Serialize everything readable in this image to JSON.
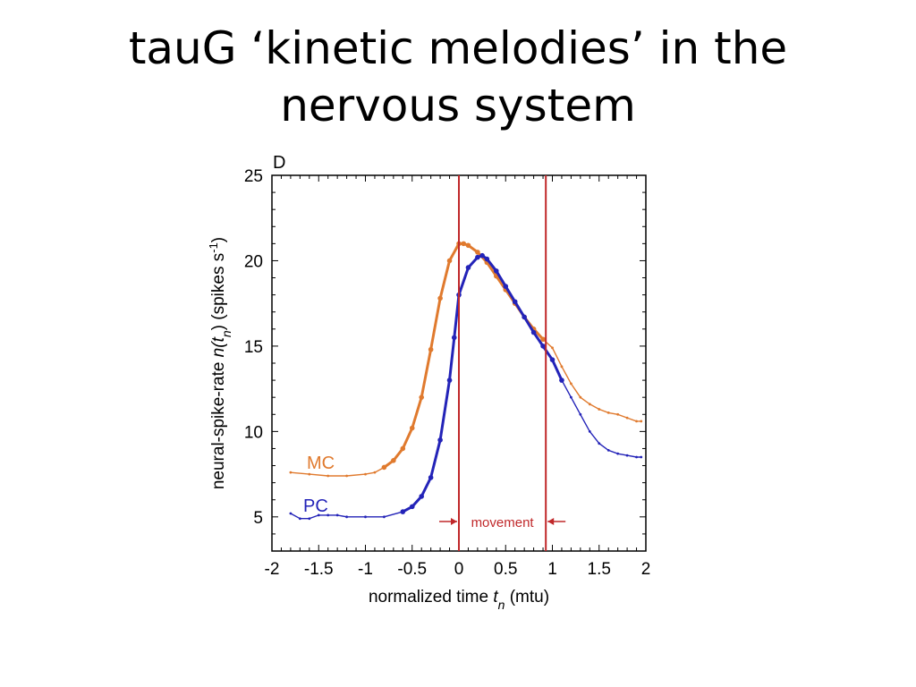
{
  "slide": {
    "title_line1": "tauG ‘kinetic melodies’ in the",
    "title_line2": "nervous system"
  },
  "chart_data": {
    "type": "line",
    "panel_label": "D",
    "xlabel": {
      "pre": "normalized time ",
      "var": "t",
      "sub": "n",
      "post": " (mtu)"
    },
    "ylabel": {
      "pre": "neural-spike-rate ",
      "var": "n(t",
      "sub": "n",
      "mid": ") (spikes s",
      "sup": "-1",
      "post": ")"
    },
    "xlim": [
      -2,
      2
    ],
    "ylim": [
      3,
      25
    ],
    "xticks": [
      "-2",
      "-1.5",
      "-1",
      "-0.5",
      "0",
      "0.5",
      "1",
      "1.5",
      "2"
    ],
    "yticks": [
      "5",
      "10",
      "15",
      "20",
      "25"
    ],
    "grid": false,
    "series": [
      {
        "name": "MC",
        "color": "#e07a2e",
        "label_color": "#e07a2e",
        "x": [
          -1.8,
          -1.6,
          -1.4,
          -1.2,
          -1.0,
          -0.9,
          -0.8,
          -0.7,
          -0.6,
          -0.5,
          -0.4,
          -0.3,
          -0.2,
          -0.1,
          0.0,
          0.05,
          0.1,
          0.2,
          0.3,
          0.4,
          0.5,
          0.6,
          0.7,
          0.8,
          0.9,
          1.0,
          1.1,
          1.2,
          1.3,
          1.4,
          1.5,
          1.6,
          1.7,
          1.8,
          1.9,
          1.95
        ],
        "y": [
          7.6,
          7.5,
          7.4,
          7.4,
          7.5,
          7.6,
          7.9,
          8.3,
          9.0,
          10.2,
          12.0,
          14.8,
          17.8,
          20.0,
          21.0,
          21.0,
          20.9,
          20.5,
          19.9,
          19.1,
          18.3,
          17.5,
          16.7,
          16.0,
          15.4,
          14.9,
          13.8,
          12.8,
          12.0,
          11.6,
          11.3,
          11.1,
          11.0,
          10.8,
          10.6,
          10.6
        ],
        "emphasized_x_range": [
          -0.8,
          0.95
        ]
      },
      {
        "name": "PC",
        "color": "#2323b8",
        "label_color": "#2323b8",
        "x": [
          -1.8,
          -1.7,
          -1.6,
          -1.5,
          -1.4,
          -1.3,
          -1.2,
          -1.0,
          -0.8,
          -0.6,
          -0.5,
          -0.4,
          -0.3,
          -0.2,
          -0.1,
          -0.05,
          0.0,
          0.1,
          0.2,
          0.25,
          0.3,
          0.4,
          0.5,
          0.6,
          0.7,
          0.8,
          0.9,
          1.0,
          1.1,
          1.2,
          1.3,
          1.4,
          1.5,
          1.6,
          1.7,
          1.8,
          1.9,
          1.95
        ],
        "y": [
          5.2,
          4.9,
          4.9,
          5.1,
          5.1,
          5.1,
          5.0,
          5.0,
          5.0,
          5.3,
          5.6,
          6.2,
          7.3,
          9.5,
          13.0,
          15.5,
          18.0,
          19.6,
          20.2,
          20.3,
          20.1,
          19.4,
          18.5,
          17.6,
          16.7,
          15.8,
          15.0,
          14.2,
          13.0,
          12.0,
          11.0,
          10.0,
          9.3,
          8.9,
          8.7,
          8.6,
          8.5,
          8.5
        ],
        "emphasized_x_range": [
          -0.7,
          1.1
        ]
      }
    ],
    "annotations": {
      "movement_label": "movement",
      "movement_start": 0.0,
      "movement_end": 0.93,
      "line_color": "#c0282a"
    }
  }
}
